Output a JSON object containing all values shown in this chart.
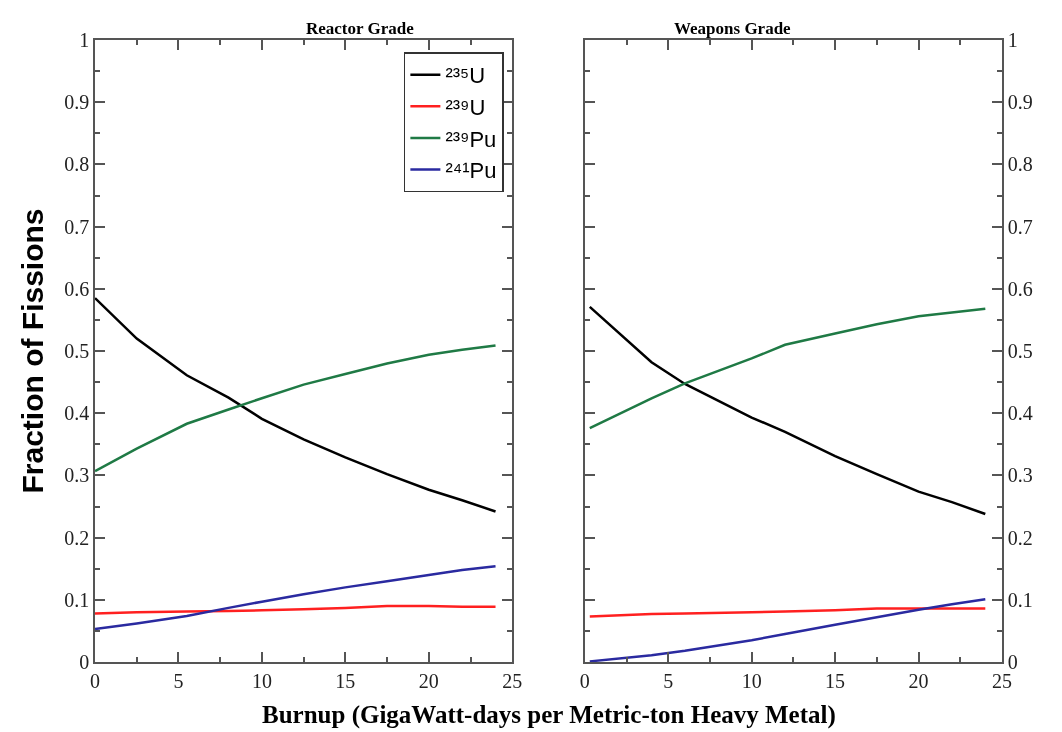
{
  "chart_data": [
    {
      "type": "line",
      "title": "Reactor Grade",
      "xlabel": "Burnup (GigaWatt-days per Metric-ton Heavy Metal)",
      "ylabel": "Fraction of Fissions",
      "xlim": [
        0,
        25
      ],
      "xticks": [
        0,
        5,
        10,
        15,
        20,
        25
      ],
      "ylim": [
        0,
        1
      ],
      "yticks": [
        0,
        0.1,
        0.2,
        0.3,
        0.4,
        0.5,
        0.6,
        0.7,
        0.8,
        0.9,
        1
      ],
      "legend": "top right",
      "x": [
        0,
        2.5,
        5.5,
        8,
        10,
        12.5,
        15,
        17.5,
        20,
        22,
        24
      ],
      "series": [
        {
          "name": "²³⁵U",
          "color": "#000000",
          "values": [
            0.585,
            0.52,
            0.461,
            0.425,
            0.391,
            0.358,
            0.329,
            0.302,
            0.277,
            0.26,
            0.242
          ]
        },
        {
          "name": "²³⁹U",
          "color": "#ff2020",
          "values": [
            0.078,
            0.08,
            0.081,
            0.082,
            0.083,
            0.085,
            0.087,
            0.09,
            0.09,
            0.089,
            0.089
          ]
        },
        {
          "name": "²³⁹Pu",
          "color": "#1f7a45",
          "values": [
            0.307,
            0.343,
            0.383,
            0.406,
            0.424,
            0.446,
            0.463,
            0.48,
            0.494,
            0.502,
            0.509
          ]
        },
        {
          "name": "²⁴¹Pu",
          "color": "#2a2aa0",
          "values": [
            0.053,
            0.062,
            0.074,
            0.087,
            0.097,
            0.109,
            0.12,
            0.13,
            0.14,
            0.148,
            0.154
          ]
        }
      ]
    },
    {
      "type": "line",
      "title": "Weapons Grade",
      "xlim": [
        0,
        25
      ],
      "xticks": [
        0,
        5,
        10,
        15,
        20,
        25
      ],
      "ylim": [
        0,
        1
      ],
      "yticks": [
        0,
        0.1,
        0.2,
        0.3,
        0.4,
        0.5,
        0.6,
        0.7,
        0.8,
        0.9,
        1
      ],
      "x": [
        0.3,
        4,
        6,
        10,
        12,
        15,
        17.5,
        20,
        22,
        24
      ],
      "series": [
        {
          "color": "#000000",
          "values": [
            0.571,
            0.482,
            0.447,
            0.393,
            0.37,
            0.331,
            0.302,
            0.274,
            0.257,
            0.238
          ]
        },
        {
          "color": "#ff2020",
          "values": [
            0.073,
            0.077,
            0.078,
            0.08,
            0.081,
            0.083,
            0.086,
            0.086,
            0.086,
            0.086
          ]
        },
        {
          "color": "#1f7a45",
          "values": [
            0.376,
            0.424,
            0.448,
            0.488,
            0.51,
            0.528,
            0.543,
            0.556,
            0.562,
            0.568
          ]
        },
        {
          "color": "#2a2aa0",
          "values": [
            0.001,
            0.011,
            0.018,
            0.035,
            0.045,
            0.06,
            0.072,
            0.084,
            0.093,
            0.101
          ]
        }
      ]
    }
  ]
}
